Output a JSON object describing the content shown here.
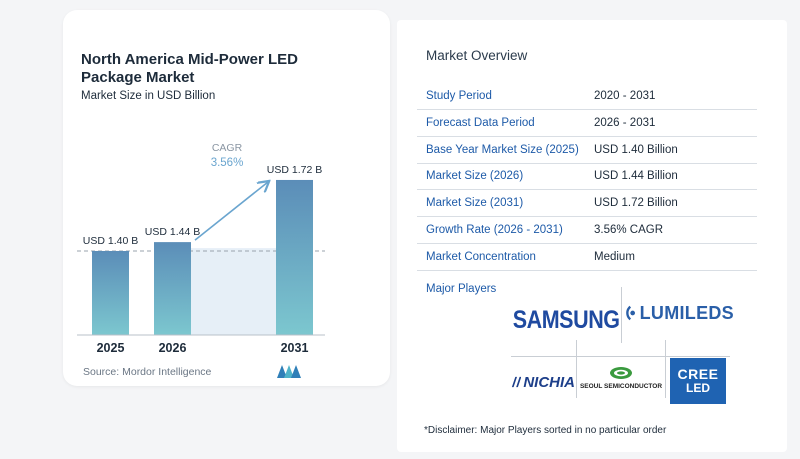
{
  "chart_title": "North America Mid-Power LED Package Market",
  "chart_subtitle": "Market Size in USD Billion",
  "source": "Source: Mordor Intelligence",
  "chart_data": {
    "type": "bar",
    "categories": [
      "2025",
      "2026",
      "2031"
    ],
    "values": [
      1.4,
      1.44,
      1.72
    ],
    "data_labels": [
      "USD 1.40 B",
      "USD 1.44 B",
      "USD 1.72 B"
    ],
    "title": "North America Mid-Power LED Package Market",
    "subtitle": "Market Size in USD Billion",
    "cagr_label": "CAGR",
    "cagr_value": "3.56%",
    "bar_color_top": "#5b8db8",
    "bar_color_bottom": "#7cc7cf",
    "shade_color": "#e6eff7",
    "dashed_reference": 1.4
  },
  "overview": {
    "title": "Market Overview",
    "rows": [
      {
        "key": "Study Period",
        "value": "2020 - 2031"
      },
      {
        "key": "Forecast Data Period",
        "value": "2026 - 2031"
      },
      {
        "key": "Base Year Market Size (2025)",
        "value": "USD 1.40 Billion"
      },
      {
        "key": "Market Size (2026)",
        "value": "USD 1.44 Billion"
      },
      {
        "key": "Market Size (2031)",
        "value": "USD 1.72 Billion"
      },
      {
        "key": "Growth Rate (2026 - 2031)",
        "value": "3.56% CAGR"
      },
      {
        "key": "Market Concentration",
        "value": "Medium"
      }
    ],
    "major_players_label": "Major Players",
    "players": {
      "samsung": "SAMSUNG",
      "lumileds": "LUMILEDS",
      "nichia": "NICHIA",
      "seoul": "SEOUL SEMICONDUCTOR",
      "cree_top": "CREE",
      "cree_bottom": "LED"
    },
    "disclaimer": "*Disclaimer: Major Players sorted in no particular order"
  }
}
